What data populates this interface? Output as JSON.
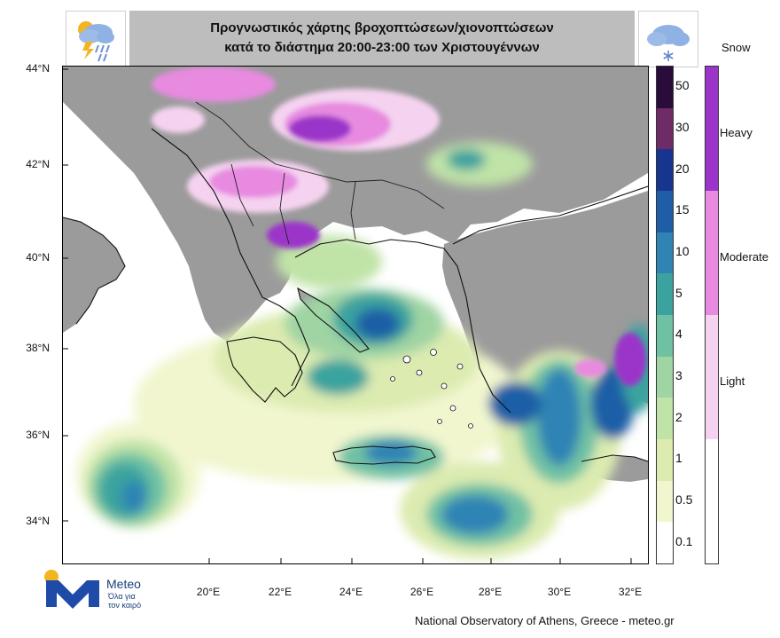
{
  "header": {
    "title_line1": "Προγνωστικός χάρτης βροχοπτώσεων/χιονοπτώσεων",
    "title_line2": "κατά το διάστημα 20:00-23:00 των Χριστουγέννων",
    "left_icon": "rain-thunder-cloud-icon",
    "right_icon": "snow-cloud-icon"
  },
  "map": {
    "lat_labels": [
      "44°N",
      "42°N",
      "40°N",
      "38°N",
      "36°N",
      "34°N"
    ],
    "lon_labels": [
      "20°E",
      "22°E",
      "24°E",
      "26°E",
      "28°E",
      "30°E",
      "32°E"
    ]
  },
  "rain_colorbar": {
    "levels": [
      "0.1",
      "0.5",
      "1",
      "2",
      "3",
      "4",
      "5",
      "10",
      "15",
      "20",
      "30",
      "50"
    ],
    "colors": [
      "#ffffff",
      "#f1f6cf",
      "#dcebb0",
      "#c0e3a7",
      "#9fd4a3",
      "#6fc1a4",
      "#3ba39f",
      "#2f84b4",
      "#1f5ea6",
      "#17358f",
      "#6e2b66",
      "#2a0c3b"
    ]
  },
  "snow_colorbar": {
    "title": "Snow",
    "categories": [
      "Light",
      "Moderate",
      "Heavy"
    ],
    "colors": [
      "#f5d3f0",
      "#e78ae0",
      "#9b35c9"
    ]
  },
  "colors": {
    "land_gray": "#9b9b9b",
    "sea": "#ffffff",
    "coast": "#111111"
  },
  "footer": {
    "logo_name": "Meteo",
    "logo_tagline_1": "Όλα για",
    "logo_tagline_2": "τον καιρό",
    "credit": "National Observatory of Athens, Greece - meteo.gr"
  }
}
